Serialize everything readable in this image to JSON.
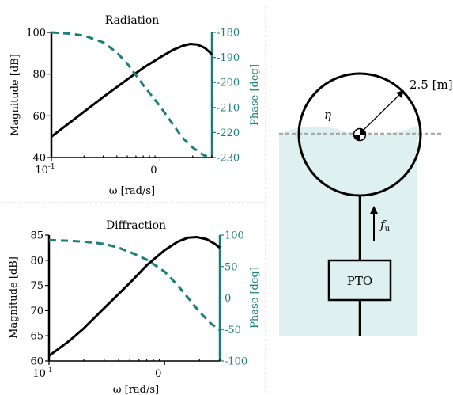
{
  "colors": {
    "magnitude": "#000000",
    "phase": "#1a7f7a",
    "water": "#dff0f0",
    "divider": "#cccccc"
  },
  "chart_data": [
    {
      "type": "line",
      "title": "Radiation",
      "xlabel": "ω [rad/s]",
      "ylabel": "Magnitude [dB]",
      "y2label": "Phase [deg]",
      "xscale": "log",
      "xlim": [
        0.1,
        3.0
      ],
      "ylim": [
        40,
        100
      ],
      "y2lim": [
        -230,
        -180
      ],
      "xtick_labels": [
        "10",
        "0"
      ],
      "xtick_exponents": [
        "-1",
        ""
      ],
      "ytick_labels": [
        "40",
        "60",
        "80",
        "100"
      ],
      "y2tick_labels": [
        "-230",
        "-220",
        "-210",
        "-200",
        "-190",
        "-180"
      ],
      "series": [
        {
          "axis": "left",
          "style": "solid",
          "x": [
            0.1,
            0.15,
            0.2,
            0.3,
            0.5,
            0.7,
            1.0,
            1.3,
            1.6,
            1.9,
            2.2,
            2.6,
            3.0
          ],
          "y": [
            50,
            57,
            62,
            69,
            77.5,
            83,
            88,
            91.5,
            93.5,
            94.5,
            94.2,
            92.5,
            89.5
          ]
        },
        {
          "axis": "right",
          "style": "dashed",
          "x": [
            0.1,
            0.15,
            0.2,
            0.3,
            0.4,
            0.5,
            0.7,
            1.0,
            1.3,
            1.6,
            2.0,
            2.5,
            2.9
          ],
          "y": [
            -180,
            -180.5,
            -181.3,
            -184,
            -188,
            -192.5,
            -201,
            -209.5,
            -216.5,
            -222,
            -226,
            -229,
            -230
          ]
        }
      ]
    },
    {
      "type": "line",
      "title": "Diffraction",
      "xlabel": "ω [rad/s]",
      "ylabel": "Magnitude [dB]",
      "y2label": "Phase [deg]",
      "xscale": "log",
      "xlim": [
        0.1,
        3.0
      ],
      "ylim": [
        60,
        85
      ],
      "y2lim": [
        -100,
        100
      ],
      "xtick_labels": [
        "10",
        "0"
      ],
      "xtick_exponents": [
        "-1",
        ""
      ],
      "ytick_labels": [
        "60",
        "65",
        "70",
        "75",
        "80",
        "85"
      ],
      "y2tick_labels": [
        "-100",
        "-50",
        "0",
        "50",
        "100"
      ],
      "series": [
        {
          "axis": "left",
          "style": "solid",
          "x": [
            0.1,
            0.15,
            0.2,
            0.3,
            0.5,
            0.7,
            1.0,
            1.3,
            1.6,
            1.9,
            2.3,
            2.7,
            3.0
          ],
          "y": [
            61,
            64,
            66.5,
            70.5,
            75.5,
            79,
            82,
            83.7,
            84.5,
            84.6,
            84.2,
            83.3,
            82.5
          ]
        },
        {
          "axis": "right",
          "style": "dashed",
          "x": [
            0.1,
            0.15,
            0.2,
            0.3,
            0.4,
            0.55,
            0.7,
            1.0,
            1.3,
            1.6,
            2.0,
            2.5,
            3.0
          ],
          "y": [
            92,
            91,
            89.5,
            86,
            80,
            70,
            61,
            42,
            20,
            0,
            -22,
            -40,
            -51
          ]
        }
      ]
    }
  ],
  "diagram": {
    "radius_label": "2.5 [m]",
    "eta_label": "η",
    "force_label": "f",
    "force_subscript": "u",
    "pto_label": "PTO"
  }
}
